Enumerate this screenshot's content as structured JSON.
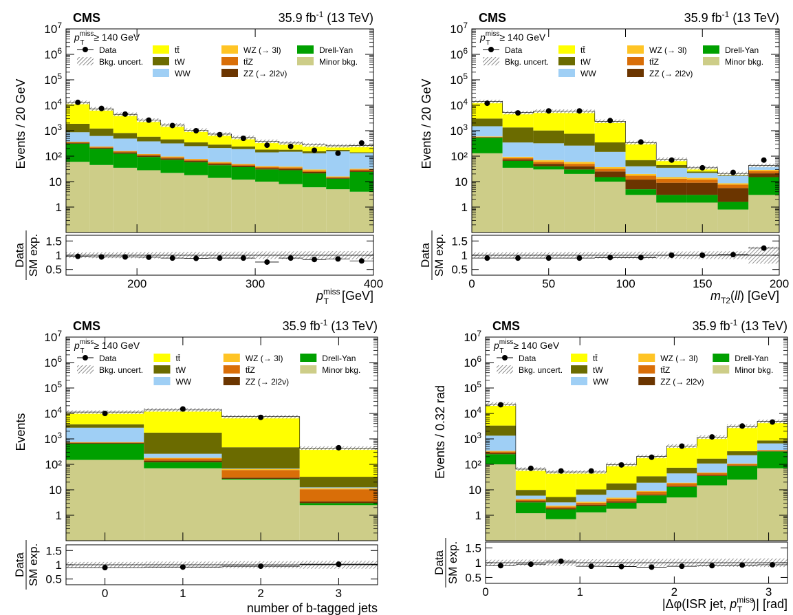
{
  "colors": {
    "ttbar": "#ffff00",
    "tW": "#6b6b00",
    "WW": "#9fcff5",
    "WZ": "#ffc425",
    "ttZ": "#d96e08",
    "ZZ": "#6b3500",
    "DY": "#00a000",
    "minor": "#cdcd88",
    "data": "#000000"
  },
  "legend_entries": [
    {
      "key": "data",
      "label": "Data"
    },
    {
      "key": "uncert",
      "label": "Bkg. uncert."
    },
    {
      "key": "ttbar",
      "label": "tt̄"
    },
    {
      "key": "tW",
      "label": "tW"
    },
    {
      "key": "WW",
      "label": "WW"
    },
    {
      "key": "WZ",
      "label": "WZ (→ 3l)"
    },
    {
      "key": "ttZ",
      "label": "tt̄Z"
    },
    {
      "key": "ZZ",
      "label": "ZZ (→ 2l2ν)"
    },
    {
      "key": "DY",
      "label": "Drell-Yan"
    },
    {
      "key": "minor",
      "label": "Minor bkg."
    }
  ],
  "chart_data": [
    {
      "type": "bar",
      "cms_label": "CMS",
      "lumi_label": "35.9 fb⁻¹ (13 TeV)",
      "cut_label": "p_T^miss ≥ 140 GeV",
      "ylabel": "Events / 20 GeV",
      "ratio_ylabel": [
        "Data",
        "SM exp."
      ],
      "xlabel": "p_T^miss [GeV]",
      "log_y": true,
      "ylim": [
        0.1,
        10000000
      ],
      "xlim": [
        140,
        400
      ],
      "ratio_ylim": [
        0.3,
        1.7
      ],
      "edges": [
        140,
        160,
        180,
        200,
        220,
        240,
        260,
        280,
        300,
        320,
        340,
        360,
        380,
        400
      ],
      "xticks": [
        200,
        300,
        400
      ],
      "stack": {
        "minor": [
          60,
          45,
          35,
          28,
          22,
          18,
          14,
          12,
          10,
          8,
          6,
          5,
          4
        ],
        "DY": [
          250,
          150,
          90,
          65,
          50,
          40,
          30,
          25,
          20,
          20,
          15,
          8,
          20
        ],
        "ZZ": [
          25,
          18,
          15,
          12,
          10,
          8,
          6,
          5,
          4,
          4,
          3,
          1,
          3
        ],
        "ttZ": [
          25,
          20,
          15,
          12,
          10,
          8,
          6,
          5,
          4,
          4,
          3,
          1,
          3
        ],
        "WZ": [
          10,
          8,
          6,
          5,
          5,
          4,
          4,
          3,
          3,
          3,
          3,
          1,
          2
        ],
        "WW": [
          500,
          380,
          330,
          260,
          220,
          170,
          150,
          140,
          100,
          110,
          100,
          140,
          100
        ],
        "tW": [
          1000,
          600,
          320,
          200,
          140,
          100,
          75,
          50,
          40,
          30,
          25,
          20,
          10
        ],
        "ttbar": [
          11000,
          6000,
          3600,
          2000,
          1200,
          700,
          450,
          300,
          200,
          150,
          120,
          80,
          120
        ]
      },
      "data": [
        13000,
        7500,
        4500,
        2600,
        1600,
        1000,
        700,
        500,
        270,
        240,
        170,
        130,
        330
      ],
      "ratio": [
        0.96,
        0.94,
        0.94,
        0.93,
        0.9,
        0.89,
        0.9,
        0.9,
        0.76,
        0.9,
        0.85,
        0.87,
        0.8
      ]
    },
    {
      "type": "bar",
      "cms_label": "CMS",
      "lumi_label": "35.9 fb⁻¹ (13 TeV)",
      "cut_label": "p_T^miss ≥ 140 GeV",
      "ylabel": "Events / 20 GeV",
      "ratio_ylabel": [
        "Data",
        "SM exp."
      ],
      "xlabel": "m_T2(ll) [GeV]",
      "log_y": true,
      "ylim": [
        0.1,
        10000000
      ],
      "xlim": [
        0,
        200
      ],
      "ratio_ylim": [
        0.3,
        1.7
      ],
      "edges": [
        0,
        20,
        40,
        60,
        80,
        100,
        120,
        140,
        160,
        180,
        200
      ],
      "xticks": [
        0,
        50,
        100,
        150,
        200
      ],
      "stack": {
        "minor": [
          130,
          35,
          30,
          20,
          10,
          3,
          1.5,
          1.5,
          0.8,
          3
        ],
        "DY": [
          400,
          30,
          10,
          10,
          5,
          2,
          1.5,
          1.5,
          0.8,
          12
        ],
        "ZZ": [
          20,
          10,
          10,
          10,
          10,
          7,
          6,
          6,
          4,
          6
        ],
        "ttZ": [
          30,
          10,
          10,
          10,
          7,
          5,
          4,
          3,
          2,
          5
        ],
        "WZ": [
          20,
          10,
          10,
          10,
          5,
          3,
          2,
          2,
          1,
          3
        ],
        "WW": [
          900,
          250,
          250,
          200,
          110,
          20,
          20,
          8,
          8,
          10
        ],
        "tW": [
          1500,
          1000,
          700,
          500,
          200,
          30,
          10,
          3,
          2,
          2
        ],
        "ttbar": [
          11000,
          3800,
          4800,
          5000,
          2000,
          270,
          30,
          10,
          2,
          2
        ]
      },
      "data": [
        12000,
        5000,
        6000,
        6000,
        2500,
        360,
        70,
        35,
        23,
        70
      ],
      "ratio": [
        0.9,
        0.9,
        0.9,
        0.9,
        0.92,
        0.92,
        1.0,
        1.0,
        1.02,
        1.25
      ]
    },
    {
      "type": "bar",
      "cms_label": "CMS",
      "lumi_label": "35.9 fb⁻¹ (13 TeV)",
      "cut_label": "p_T^miss ≥ 140 GeV",
      "ylabel": "Events",
      "ratio_ylabel": [
        "Data",
        "SM exp."
      ],
      "xlabel": "number of b-tagged jets",
      "log_y": true,
      "ylim": [
        0.1,
        10000000
      ],
      "xlim": [
        -0.5,
        3.5
      ],
      "ratio_ylim": [
        0.3,
        1.7
      ],
      "edges": [
        -0.5,
        0.5,
        1.5,
        2.5,
        3.5
      ],
      "xticks": [
        0,
        1,
        2,
        3
      ],
      "stack": {
        "minor": [
          150,
          70,
          25,
          2.5
        ],
        "DY": [
          500,
          50,
          2,
          0.5
        ],
        "ZZ": [
          40,
          20,
          3,
          0.5
        ],
        "ttZ": [
          40,
          30,
          30,
          7
        ],
        "WZ": [
          20,
          10,
          5,
          1
        ],
        "WW": [
          2000,
          80,
          3,
          1
        ],
        "tW": [
          1000,
          1500,
          400,
          20
        ],
        "ttbar": [
          7500,
          12000,
          7000,
          400
        ]
      },
      "data": [
        10000,
        15000,
        7000,
        450
      ],
      "ratio": [
        0.9,
        0.92,
        0.95,
        1.02
      ]
    },
    {
      "type": "bar",
      "cms_label": "CMS",
      "lumi_label": "35.9 fb⁻¹ (13 TeV)",
      "cut_label": "p_T^miss ≥ 140 GeV",
      "ylabel": "Events / 0.32 rad",
      "ratio_ylabel": [
        "Data",
        "SM exp."
      ],
      "xlabel": "|Δφ(ISR jet, p_T^miss)| [rad]",
      "log_y": true,
      "ylim": [
        0.1,
        10000000
      ],
      "xlim": [
        0,
        3.2
      ],
      "ratio_ylim": [
        0.3,
        1.7
      ],
      "edges": [
        0,
        0.32,
        0.64,
        0.96,
        1.28,
        1.6,
        1.92,
        2.24,
        2.56,
        2.88,
        3.2
      ],
      "xticks": [
        0,
        1,
        2,
        3
      ],
      "stack": {
        "minor": [
          100,
          1.2,
          0.7,
          1.3,
          1.8,
          3,
          5,
          15,
          25,
          70
        ],
        "DY": [
          150,
          2,
          1,
          1,
          1.3,
          3,
          8,
          20,
          60,
          250
        ],
        "ZZ": [
          30,
          0.4,
          0.2,
          0.3,
          0.4,
          0.5,
          1,
          3,
          5,
          10
        ],
        "ttZ": [
          40,
          0.5,
          0.3,
          0.5,
          1,
          2,
          4,
          8,
          15,
          30
        ],
        "WZ": [
          20,
          0.3,
          0.2,
          0.3,
          0.4,
          0.5,
          1,
          2,
          3,
          5
        ],
        "WW": [
          1000,
          1.5,
          0.8,
          3,
          5,
          10,
          25,
          60,
          120,
          300
        ],
        "tW": [
          2000,
          4,
          2,
          4,
          8,
          15,
          30,
          60,
          100,
          200
        ],
        "ttbar": [
          20000,
          55,
          45,
          40,
          80,
          170,
          450,
          1000,
          2800,
          4000
        ]
      },
      "data": [
        22000,
        70,
        55,
        55,
        95,
        190,
        520,
        1200,
        3200,
        4600
      ],
      "ratio": [
        0.9,
        0.95,
        1.05,
        0.88,
        0.87,
        0.85,
        0.88,
        0.9,
        0.92,
        0.93
      ]
    }
  ]
}
